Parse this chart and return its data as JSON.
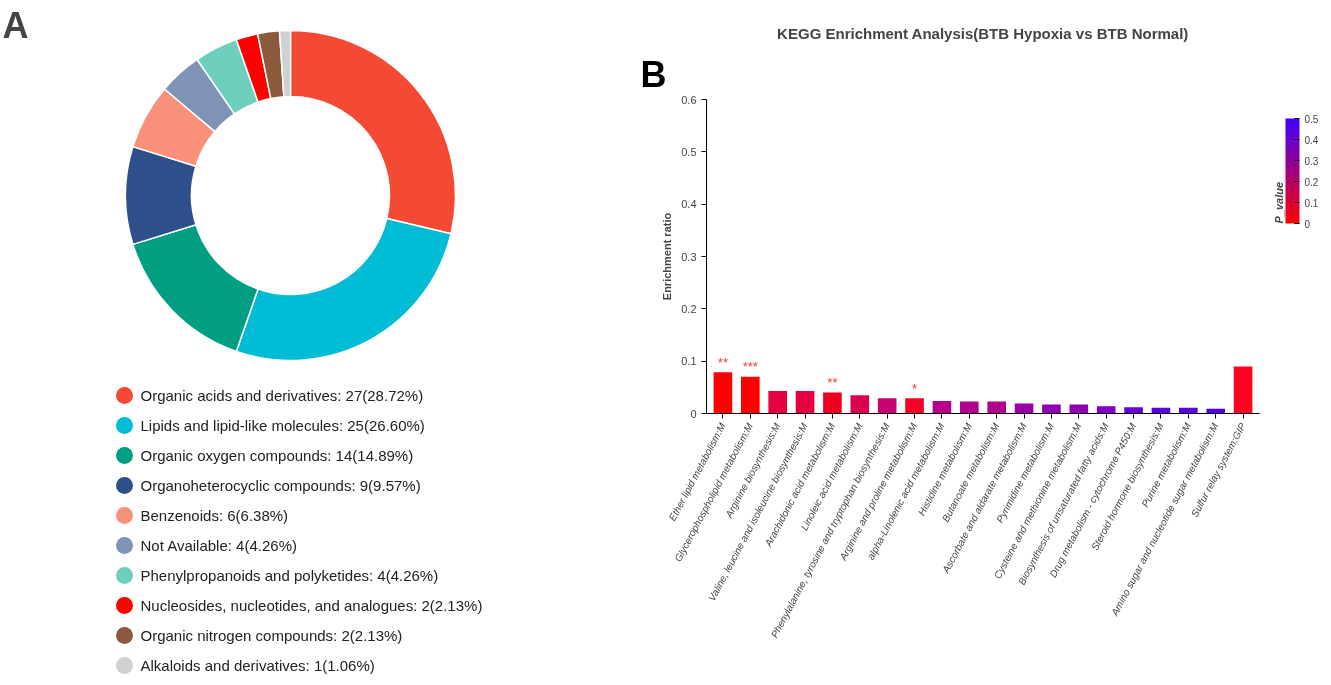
{
  "chart_data": [
    {
      "type": "donut",
      "annotations": [
        "A"
      ],
      "legend": "bottom",
      "categories": [
        "Organic acids and derivatives",
        "Lipids and lipid-like molecules",
        "Organic oxygen compounds",
        "Organoheterocyclic compounds",
        "Benzenoids",
        "Not Available",
        "Phenylpropanoids and polyketides",
        "Nucleosides, nucleotides, and analogues",
        "Organic nitrogen compounds",
        "Alkaloids and derivatives"
      ],
      "values": [
        27,
        25,
        14,
        9,
        6,
        4,
        4,
        2,
        2,
        1
      ],
      "value_labels": [
        "27(28.72%)",
        "25(26.60%)",
        "14(14.89%)",
        "9(9.57%)",
        "6(6.38%)",
        "4(4.26%)",
        "4(4.26%)",
        "2(2.13%)",
        "2(2.13%)",
        "1(1.06%)"
      ],
      "colors": [
        "#f44a34",
        "#00bcd4",
        "#009e82",
        "#2d4f8a",
        "#f9917a",
        "#7e93b6",
        "#6fcfbf",
        "#ff0000",
        "#8b5a3c",
        "#d0d0d0"
      ]
    },
    {
      "type": "bar",
      "title": "KEGG Enrichment Analysis(BTB Hypoxia vs BTB Normal)",
      "ylabel": "Enrichment ratio",
      "clabel": "P_value",
      "categories": [
        "Ether lipid metabolism:M",
        "Glycerophospholipid metabolism:M",
        "Arginine biosynthesis:M",
        "Valine, leucine and isoleucine biosynthesis:M",
        "Arachidonic acid metabolism:M",
        "Linoleic acid metabolism:M",
        "Phenylalanine, tyrosine and tryptophan biosynthesis:M",
        "Arginine and proline metabolism:M",
        "alpha-Linolenic acid metabolism:M",
        "Histidine metabolism:M",
        "Butanoate metabolism:M",
        "Ascorbate and aldarate metabolism:M",
        "Pyrimidine metabolism:M",
        "Cysteine and methionine metabolism:M",
        "Biosynthesis of unsaturated fatty acids:M",
        "Drug metabolism - cytochrome P450:M",
        "Steroid hormone biosynthesis:M",
        "Purine metabolism:M",
        "Amino sugar and nucleotide sugar metabolism:M",
        "Sulfur relay system:GIP"
      ],
      "values": [
        0.079,
        0.07,
        0.043,
        0.043,
        0.04,
        0.035,
        0.029,
        0.029,
        0.024,
        0.023,
        0.023,
        0.019,
        0.017,
        0.017,
        0.014,
        0.012,
        0.011,
        0.011,
        0.009,
        0.09
      ],
      "colors": [
        "#ff0000",
        "#ff0000",
        "#e6003d",
        "#e6003d",
        "#f00020",
        "#dc0050",
        "#c80070",
        "#fa0025",
        "#b4008a",
        "#b0008e",
        "#b0008e",
        "#9a00a8",
        "#9000b5",
        "#9000b5",
        "#8000c8",
        "#6600dd",
        "#5a00e6",
        "#5a00e6",
        "#4a00f5",
        "#ff0022"
      ],
      "ylim": [
        0,
        0.6
      ],
      "yticks": [
        0,
        0.1,
        0.2,
        0.3,
        0.4,
        0.5,
        0.6
      ],
      "clim": [
        0,
        0.5
      ],
      "cticks": [
        0,
        0.1,
        0.2,
        0.3,
        0.4,
        0.5
      ],
      "grid": false,
      "annotations": [
        "B",
        {
          "text": "**",
          "x": "Ether lipid metabolism:M",
          "y": 0.084
        },
        {
          "text": "***",
          "x": "Glycerophospholipid metabolism:M",
          "y": 0.075
        },
        {
          "text": "**",
          "x": "Arachidonic acid metabolism:M",
          "y": 0.045
        },
        {
          "text": "*",
          "x": "Arginine and proline metabolism:M",
          "y": 0.034
        }
      ]
    }
  ]
}
